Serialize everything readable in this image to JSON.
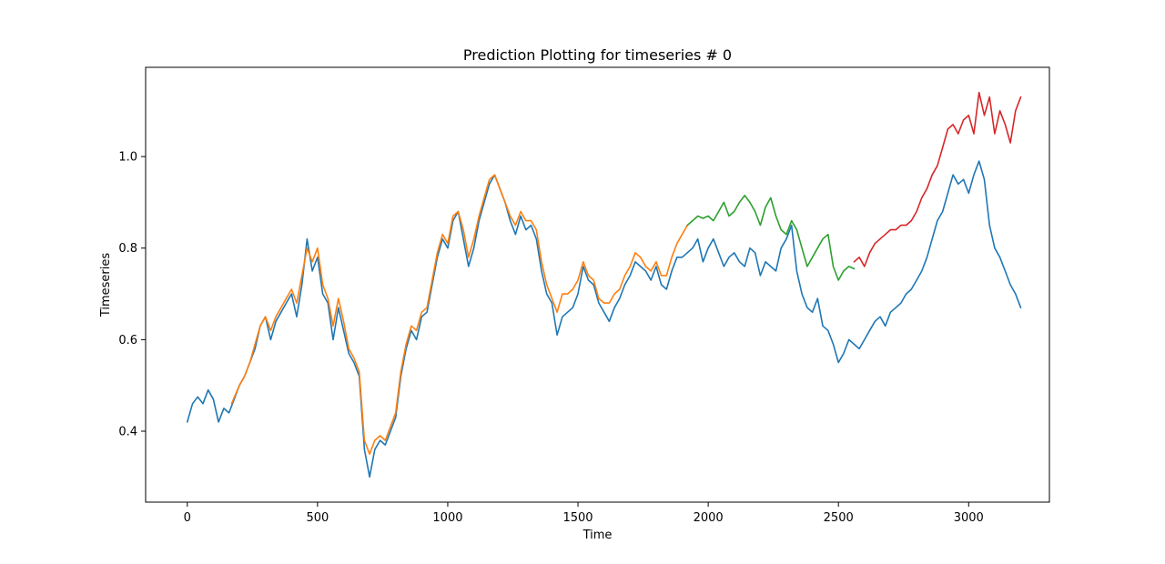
{
  "chart_data": {
    "type": "line",
    "title": "Prediction Plotting for timeseries # 0",
    "xlabel": "Time",
    "ylabel": "Timeseries",
    "xlim": [
      -160,
      3310
    ],
    "ylim": [
      0.245,
      1.195
    ],
    "xticks": [
      0,
      500,
      1000,
      1500,
      2000,
      2500,
      3000
    ],
    "yticks": [
      0.4,
      0.6,
      0.8,
      1.0
    ],
    "ytick_labels": [
      "0.4",
      "0.6",
      "0.8",
      "1.0"
    ],
    "grid": false,
    "legend": "none",
    "series": [
      {
        "color": "#1f77b4",
        "x": [
          0,
          20,
          40,
          60,
          80,
          100,
          120,
          140,
          160,
          180,
          200,
          220,
          240,
          260,
          280,
          300,
          320,
          340,
          360,
          380,
          400,
          420,
          440,
          460,
          480,
          500,
          520,
          540,
          560,
          580,
          600,
          620,
          640,
          660,
          680,
          700,
          720,
          740,
          760,
          780,
          800,
          820,
          840,
          860,
          880,
          900,
          920,
          940,
          960,
          980,
          1000,
          1020,
          1040,
          1060,
          1080,
          1100,
          1120,
          1140,
          1160,
          1180,
          1200,
          1220,
          1240,
          1260,
          1280,
          1300,
          1320,
          1340,
          1360,
          1380,
          1400,
          1420,
          1440,
          1460,
          1480,
          1500,
          1520,
          1540,
          1560,
          1580,
          1600,
          1620,
          1640,
          1660,
          1680,
          1700,
          1720,
          1740,
          1760,
          1780,
          1800,
          1820,
          1840,
          1860,
          1880,
          1900,
          1920,
          1940,
          1960,
          1980,
          2000,
          2020,
          2040,
          2060,
          2080,
          2100,
          2120,
          2140,
          2160,
          2180,
          2200,
          2220,
          2240,
          2260,
          2280,
          2300,
          2320,
          2340,
          2360,
          2380,
          2400,
          2420,
          2440,
          2460,
          2480,
          2500,
          2520,
          2540,
          2560,
          2580,
          2600,
          2620,
          2640,
          2660,
          2680,
          2700,
          2720,
          2740,
          2760,
          2780,
          2800,
          2820,
          2840,
          2860,
          2880,
          2900,
          2920,
          2940,
          2960,
          2980,
          3000,
          3020,
          3040,
          3060,
          3080,
          3100,
          3120,
          3140,
          3160,
          3180,
          3200
        ],
        "y": [
          0.42,
          0.46,
          0.475,
          0.46,
          0.49,
          0.47,
          0.42,
          0.45,
          0.44,
          0.47,
          0.5,
          0.52,
          0.55,
          0.58,
          0.63,
          0.65,
          0.6,
          0.64,
          0.66,
          0.68,
          0.7,
          0.65,
          0.72,
          0.82,
          0.75,
          0.78,
          0.7,
          0.68,
          0.6,
          0.67,
          0.62,
          0.57,
          0.55,
          0.52,
          0.36,
          0.3,
          0.36,
          0.38,
          0.37,
          0.4,
          0.43,
          0.52,
          0.58,
          0.62,
          0.6,
          0.65,
          0.66,
          0.72,
          0.78,
          0.82,
          0.8,
          0.86,
          0.88,
          0.82,
          0.76,
          0.8,
          0.86,
          0.9,
          0.94,
          0.96,
          0.93,
          0.9,
          0.86,
          0.83,
          0.87,
          0.84,
          0.85,
          0.82,
          0.75,
          0.7,
          0.68,
          0.61,
          0.65,
          0.66,
          0.67,
          0.7,
          0.76,
          0.73,
          0.72,
          0.68,
          0.66,
          0.64,
          0.67,
          0.69,
          0.72,
          0.74,
          0.77,
          0.76,
          0.75,
          0.73,
          0.76,
          0.72,
          0.71,
          0.75,
          0.78,
          0.78,
          0.79,
          0.8,
          0.82,
          0.77,
          0.8,
          0.82,
          0.79,
          0.76,
          0.78,
          0.79,
          0.77,
          0.76,
          0.8,
          0.79,
          0.74,
          0.77,
          0.76,
          0.75,
          0.8,
          0.82,
          0.85,
          0.75,
          0.7,
          0.67,
          0.66,
          0.69,
          0.63,
          0.62,
          0.59,
          0.55,
          0.57,
          0.6,
          0.59,
          0.58,
          0.6,
          0.62,
          0.64,
          0.65,
          0.63,
          0.66,
          0.67,
          0.68,
          0.7,
          0.71,
          0.73,
          0.75,
          0.78,
          0.82,
          0.86,
          0.88,
          0.92,
          0.96,
          0.94,
          0.95,
          0.92,
          0.96,
          0.99,
          0.95,
          0.85,
          0.8,
          0.78,
          0.75,
          0.72,
          0.7,
          0.67
        ]
      },
      {
        "color": "#ff7f0e",
        "x": [
          170,
          200,
          220,
          240,
          260,
          280,
          300,
          320,
          340,
          360,
          380,
          400,
          420,
          440,
          460,
          480,
          500,
          520,
          540,
          560,
          580,
          600,
          620,
          640,
          660,
          680,
          700,
          720,
          740,
          760,
          780,
          800,
          820,
          840,
          860,
          880,
          900,
          920,
          940,
          960,
          980,
          1000,
          1020,
          1040,
          1060,
          1080,
          1100,
          1120,
          1140,
          1160,
          1180,
          1200,
          1220,
          1240,
          1260,
          1280,
          1300,
          1320,
          1340,
          1360,
          1380,
          1400,
          1420,
          1440,
          1460,
          1480,
          1500,
          1520,
          1540,
          1560,
          1580,
          1600,
          1620,
          1640,
          1660,
          1680,
          1700,
          1720,
          1740,
          1760,
          1780,
          1800,
          1820,
          1840,
          1860,
          1880,
          1900,
          1920
        ],
        "y": [
          0.46,
          0.5,
          0.52,
          0.55,
          0.59,
          0.63,
          0.65,
          0.62,
          0.65,
          0.67,
          0.69,
          0.71,
          0.68,
          0.74,
          0.8,
          0.77,
          0.8,
          0.72,
          0.69,
          0.63,
          0.69,
          0.64,
          0.58,
          0.56,
          0.53,
          0.38,
          0.35,
          0.38,
          0.39,
          0.38,
          0.41,
          0.44,
          0.53,
          0.59,
          0.63,
          0.62,
          0.66,
          0.67,
          0.73,
          0.79,
          0.83,
          0.81,
          0.87,
          0.88,
          0.84,
          0.78,
          0.82,
          0.87,
          0.91,
          0.95,
          0.96,
          0.93,
          0.9,
          0.87,
          0.85,
          0.88,
          0.86,
          0.86,
          0.84,
          0.77,
          0.72,
          0.69,
          0.66,
          0.7,
          0.7,
          0.71,
          0.73,
          0.77,
          0.74,
          0.73,
          0.69,
          0.68,
          0.68,
          0.7,
          0.71,
          0.74,
          0.76,
          0.79,
          0.78,
          0.76,
          0.75,
          0.77,
          0.74,
          0.74,
          0.78,
          0.81,
          0.83,
          0.85
        ]
      },
      {
        "color": "#2ca02c",
        "x": [
          1920,
          1940,
          1960,
          1980,
          2000,
          2020,
          2040,
          2060,
          2080,
          2100,
          2120,
          2140,
          2160,
          2180,
          2200,
          2220,
          2240,
          2260,
          2280,
          2300,
          2320,
          2340,
          2360,
          2380,
          2400,
          2420,
          2440,
          2460,
          2480,
          2500,
          2520,
          2540,
          2560
        ],
        "y": [
          0.85,
          0.86,
          0.87,
          0.865,
          0.87,
          0.86,
          0.88,
          0.9,
          0.87,
          0.88,
          0.9,
          0.915,
          0.9,
          0.88,
          0.85,
          0.89,
          0.91,
          0.87,
          0.84,
          0.83,
          0.86,
          0.84,
          0.8,
          0.76,
          0.78,
          0.8,
          0.82,
          0.83,
          0.76,
          0.73,
          0.75,
          0.76,
          0.755
        ]
      },
      {
        "color": "#d62728",
        "x": [
          2560,
          2580,
          2600,
          2620,
          2640,
          2660,
          2680,
          2700,
          2720,
          2740,
          2760,
          2780,
          2800,
          2820,
          2840,
          2860,
          2880,
          2900,
          2920,
          2940,
          2960,
          2980,
          3000,
          3020,
          3040,
          3060,
          3080,
          3100,
          3120,
          3140,
          3160,
          3180,
          3200
        ],
        "y": [
          0.77,
          0.78,
          0.76,
          0.79,
          0.81,
          0.82,
          0.83,
          0.84,
          0.84,
          0.85,
          0.85,
          0.86,
          0.88,
          0.91,
          0.93,
          0.96,
          0.98,
          1.02,
          1.06,
          1.07,
          1.05,
          1.08,
          1.09,
          1.05,
          1.14,
          1.09,
          1.13,
          1.05,
          1.1,
          1.07,
          1.03,
          1.1,
          1.13
        ]
      }
    ]
  }
}
